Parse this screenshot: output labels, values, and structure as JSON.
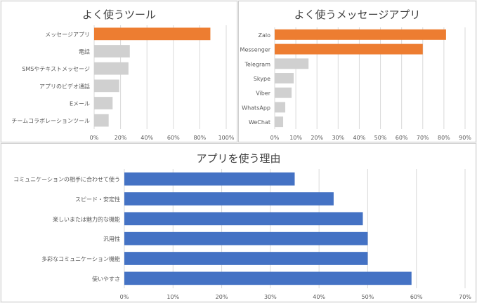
{
  "chart_data": [
    {
      "type": "bar",
      "orientation": "horizontal",
      "title": "よく使うツール",
      "categories": [
        "メッセージアプリ",
        "電話",
        "SMSやテキストメッセージ",
        "アプリのビデオ通話",
        "Eメール",
        "チームコラボレーションツール"
      ],
      "values": [
        88,
        27,
        26,
        19,
        14,
        11
      ],
      "xlim": [
        0,
        100
      ],
      "ticks": [
        "0%",
        "20%",
        "40%",
        "60%",
        "80%",
        "100%"
      ],
      "tick_values": [
        0,
        20,
        40,
        60,
        80,
        100
      ],
      "grid": true,
      "highlight_color": "#ed7d31",
      "base_color": "#d0d0d0",
      "highlight_indices": [
        0
      ]
    },
    {
      "type": "bar",
      "orientation": "horizontal",
      "title": "よく使うメッセージアプリ",
      "categories": [
        "Zalo",
        "Messenger",
        "Telegram",
        "Skype",
        "Viber",
        "WhatsApp",
        "WeChat"
      ],
      "values": [
        81,
        70,
        16,
        9,
        8,
        5,
        4
      ],
      "xlim": [
        0,
        90
      ],
      "ticks": [
        "0%",
        "10%",
        "20%",
        "30%",
        "40%",
        "50%",
        "60%",
        "70%",
        "80%",
        "90%"
      ],
      "tick_values": [
        0,
        10,
        20,
        30,
        40,
        50,
        60,
        70,
        80,
        90
      ],
      "grid": true,
      "highlight_color": "#ed7d31",
      "base_color": "#d0d0d0",
      "highlight_indices": [
        0,
        1
      ]
    },
    {
      "type": "bar",
      "orientation": "horizontal",
      "title": "アプリを使う理由",
      "categories": [
        "コミュニケーションの相手に合わせて使う",
        "スピード・安定性",
        "楽しいまたは魅力的な機能",
        "汎用性",
        "多彩なコミュニケーション機能",
        "使いやすさ"
      ],
      "values": [
        35,
        43,
        49,
        50,
        50,
        59
      ],
      "xlim": [
        0,
        70
      ],
      "ticks": [
        "0%",
        "10%",
        "20%",
        "30%",
        "40%",
        "50%",
        "60%",
        "70%"
      ],
      "tick_values": [
        0,
        10,
        20,
        30,
        40,
        50,
        60,
        70
      ],
      "grid": true,
      "highlight_color": "#4472c4",
      "base_color": "#4472c4",
      "highlight_indices": [
        0,
        1,
        2,
        3,
        4,
        5
      ]
    }
  ]
}
